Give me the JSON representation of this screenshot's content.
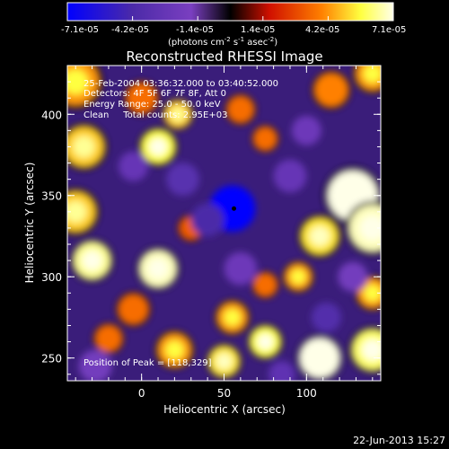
{
  "colorbar": {
    "ticks": [
      "-7.1e-05",
      "-4.2e-05",
      "-1.4e-05",
      "1.4e-05",
      "4.2e-05",
      "7.1e-05"
    ],
    "units_prefix": "(photons cm",
    "units_exp1": "-2",
    "units_mid": " s",
    "units_exp2": "-1",
    "units_mid2": " asec",
    "units_exp3": "-2",
    "units_suffix": ")"
  },
  "chart_data": {
    "type": "heatmap",
    "title": "Reconstructed RHESSI Image",
    "xlabel": "Heliocentric X (arcsec)",
    "ylabel": "Heliocentric Y (arcsec)",
    "xlim": [
      -45,
      145
    ],
    "ylim": [
      236,
      430
    ],
    "xticks": [
      0,
      50,
      100
    ],
    "yticks": [
      250,
      300,
      350,
      400
    ],
    "colormap": [
      "#0000ff",
      "#4b2aa8",
      "#7a3fc0",
      "#000000",
      "#d01000",
      "#ff8000",
      "#ffff40",
      "#ffffe8"
    ],
    "clim": [
      -7.1e-05,
      7.1e-05
    ],
    "annotations": [
      "25-Feb-2004 03:36:32.000 to 03:40:52.000",
      "Detectors: 4F 5F 6F 7F 8F, Att 0",
      "Energy Range: 25.0 - 50.0 keV",
      "Clean     Total counts: 2.95E+03"
    ],
    "peak_label": "Position of Peak = [118,329]",
    "marker": {
      "x": 56,
      "y": 342
    },
    "sources": [
      {
        "x": -40,
        "y": 420,
        "v": 0.6,
        "r": 14
      },
      {
        "x": -35,
        "y": 380,
        "v": 0.7,
        "r": 12
      },
      {
        "x": 0,
        "y": 410,
        "v": 0.5,
        "r": 9
      },
      {
        "x": 10,
        "y": 380,
        "v": 0.8,
        "r": 10
      },
      {
        "x": 22,
        "y": 400,
        "v": 0.7,
        "r": 8
      },
      {
        "x": 60,
        "y": 403,
        "v": 0.5,
        "r": 8
      },
      {
        "x": 75,
        "y": 385,
        "v": 0.5,
        "r": 7
      },
      {
        "x": 115,
        "y": 415,
        "v": 0.55,
        "r": 10
      },
      {
        "x": 140,
        "y": 425,
        "v": 0.6,
        "r": 10
      },
      {
        "x": 128,
        "y": 350,
        "v": 1.0,
        "r": 15
      },
      {
        "x": 140,
        "y": 330,
        "v": 0.95,
        "r": 14
      },
      {
        "x": 108,
        "y": 325,
        "v": 0.75,
        "r": 11
      },
      {
        "x": 95,
        "y": 300,
        "v": 0.6,
        "r": 8
      },
      {
        "x": -40,
        "y": 340,
        "v": 0.7,
        "r": 12
      },
      {
        "x": -30,
        "y": 310,
        "v": 0.9,
        "r": 11
      },
      {
        "x": 10,
        "y": 305,
        "v": 0.95,
        "r": 11
      },
      {
        "x": -5,
        "y": 280,
        "v": 0.5,
        "r": 9
      },
      {
        "x": 30,
        "y": 330,
        "v": 0.45,
        "r": 7
      },
      {
        "x": 55,
        "y": 275,
        "v": 0.6,
        "r": 9
      },
      {
        "x": 75,
        "y": 295,
        "v": 0.5,
        "r": 7
      },
      {
        "x": 20,
        "y": 255,
        "v": 0.6,
        "r": 10
      },
      {
        "x": -20,
        "y": 262,
        "v": 0.5,
        "r": 8
      },
      {
        "x": 50,
        "y": 248,
        "v": 0.75,
        "r": 9
      },
      {
        "x": 75,
        "y": 260,
        "v": 0.8,
        "r": 9
      },
      {
        "x": 108,
        "y": 250,
        "v": 1.0,
        "r": 12
      },
      {
        "x": 140,
        "y": 255,
        "v": 0.85,
        "r": 12
      },
      {
        "x": 140,
        "y": 290,
        "v": 0.6,
        "r": 9
      },
      {
        "x": 55,
        "y": 342,
        "v": -1.0,
        "r": 14
      },
      {
        "x": 40,
        "y": 335,
        "v": -0.6,
        "r": 10
      },
      {
        "x": 25,
        "y": 360,
        "v": -0.5,
        "r": 10
      },
      {
        "x": -5,
        "y": 368,
        "v": -0.4,
        "r": 9
      },
      {
        "x": 90,
        "y": 362,
        "v": -0.4,
        "r": 10
      },
      {
        "x": 100,
        "y": 390,
        "v": -0.35,
        "r": 9
      },
      {
        "x": 112,
        "y": 275,
        "v": -0.55,
        "r": 9
      },
      {
        "x": 85,
        "y": 240,
        "v": -0.45,
        "r": 8
      },
      {
        "x": 60,
        "y": 305,
        "v": -0.35,
        "r": 10
      },
      {
        "x": 128,
        "y": 300,
        "v": -0.3,
        "r": 9
      },
      {
        "x": -28,
        "y": 245,
        "v": -0.3,
        "r": 10
      }
    ]
  },
  "footer": {
    "date": "22-Jun-2013 15:27"
  }
}
